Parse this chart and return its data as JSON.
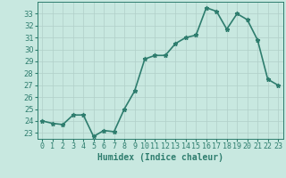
{
  "x": [
    0,
    1,
    2,
    3,
    4,
    5,
    6,
    7,
    8,
    9,
    10,
    11,
    12,
    13,
    14,
    15,
    16,
    17,
    18,
    19,
    20,
    21,
    22,
    23
  ],
  "y": [
    24.0,
    23.8,
    23.7,
    24.5,
    24.5,
    22.7,
    23.2,
    23.1,
    25.0,
    26.5,
    29.2,
    29.5,
    29.5,
    30.5,
    31.0,
    31.2,
    33.5,
    33.2,
    31.7,
    33.0,
    32.5,
    30.8,
    27.5,
    27.0
  ],
  "line_color": "#2e7d6e",
  "marker": "*",
  "marker_color": "#2e7d6e",
  "bg_color": "#c8e8e0",
  "grid_color": "#b0cfc8",
  "xlabel": "Humidex (Indice chaleur)",
  "ylim": [
    22.5,
    34.0
  ],
  "xlim": [
    -0.5,
    23.5
  ],
  "yticks": [
    23,
    24,
    25,
    26,
    27,
    28,
    29,
    30,
    31,
    32,
    33
  ],
  "xticks": [
    0,
    1,
    2,
    3,
    4,
    5,
    6,
    7,
    8,
    9,
    10,
    11,
    12,
    13,
    14,
    15,
    16,
    17,
    18,
    19,
    20,
    21,
    22,
    23
  ],
  "xtick_labels": [
    "0",
    "1",
    "2",
    "3",
    "4",
    "5",
    "6",
    "7",
    "8",
    "9",
    "10",
    "11",
    "12",
    "13",
    "14",
    "15",
    "16",
    "17",
    "18",
    "19",
    "20",
    "21",
    "22",
    "23"
  ],
  "tick_color": "#2e7d6e",
  "label_color": "#2e7d6e",
  "font_size_xlabel": 7,
  "font_size_ticks": 6,
  "line_width": 1.2,
  "marker_size": 3.5
}
